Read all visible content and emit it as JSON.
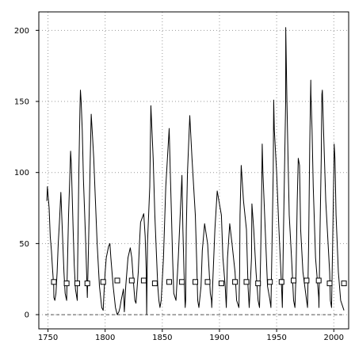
{
  "chart_data": {
    "type": "line",
    "title": "",
    "xlabel": "",
    "ylabel": "",
    "xlim": [
      1742,
      2013
    ],
    "ylim": [
      -10,
      213
    ],
    "grid": true,
    "xticks": [
      1750,
      1800,
      1850,
      1900,
      1950,
      2000
    ],
    "yticks": [
      0,
      50,
      100,
      150,
      200
    ],
    "baseline": 0,
    "colors": {
      "line": "#000000",
      "grid": "#9a9a9a",
      "marker_fill": "#ffffff",
      "marker_stroke": "#000000",
      "baseline": "#555555"
    },
    "series": [
      {
        "style": "line",
        "x": [
          1749,
          1749.5,
          1751,
          1752,
          1753,
          1754,
          1755,
          1755.2,
          1756,
          1757,
          1758,
          1759,
          1760,
          1761.3,
          1762,
          1763,
          1764,
          1765,
          1766.3,
          1767,
          1768,
          1769,
          1769.8,
          1770.4,
          1771,
          1772,
          1773,
          1774,
          1775.6,
          1776,
          1777,
          1778,
          1778.4,
          1779,
          1780,
          1781,
          1783,
          1784.4,
          1785,
          1786,
          1787,
          1787.8,
          1789,
          1790,
          1791,
          1793,
          1795,
          1797,
          1798.3,
          1799,
          1800,
          1801,
          1803,
          1804.2,
          1805,
          1807,
          1809,
          1810.6,
          1812,
          1813,
          1814,
          1816,
          1816.8,
          1818,
          1820,
          1822,
          1823.3,
          1825,
          1826,
          1827,
          1829,
          1830,
          1831,
          1833.8,
          1835,
          1836,
          1836.3,
          1837,
          1839,
          1840,
          1842,
          1843.5,
          1845,
          1846,
          1847,
          1848,
          1849,
          1851,
          1853,
          1856,
          1857,
          1858,
          1859,
          1860,
          1862,
          1864,
          1867.2,
          1868,
          1869,
          1870,
          1870.4,
          1871,
          1872,
          1874,
          1876,
          1878.9,
          1880,
          1881,
          1882,
          1883.9,
          1885,
          1887,
          1889.6,
          1891,
          1892,
          1893,
          1893.2,
          1894,
          1896,
          1898,
          1901.7,
          1903,
          1905,
          1906,
          1907,
          1909,
          1911,
          1913.6,
          1915,
          1917,
          1917.6,
          1918,
          1919,
          1921,
          1923.6,
          1925,
          1926,
          1928,
          1928.4,
          1930,
          1932,
          1933.8,
          1935,
          1936,
          1937,
          1937.4,
          1938,
          1940,
          1942,
          1944.2,
          1945,
          1946,
          1947,
          1947.4,
          1948,
          1950,
          1952,
          1954.3,
          1955,
          1956,
          1957.9,
          1958,
          1959,
          1960,
          1961,
          1963,
          1964.8,
          1966,
          1967,
          1968,
          1968.9,
          1970,
          1971,
          1973,
          1976.2,
          1977,
          1978,
          1979,
          1979.9,
          1980,
          1981,
          1982,
          1984,
          1986.8,
          1987,
          1988,
          1989,
          1989.6,
          1990,
          1991,
          1993,
          1996.4,
          1997,
          1998,
          1999,
          2000,
          2000.3,
          2001,
          2002,
          2004,
          2006,
          2008.9
        ],
        "y": [
          80,
          90,
          75,
          55,
          45,
          32,
          20,
          12,
          10,
          15,
          30,
          50,
          65,
          86,
          70,
          50,
          30,
          15,
          10,
          35,
          70,
          95,
          115,
          106,
          90,
          60,
          35,
          18,
          10,
          40,
          100,
          145,
          158,
          150,
          130,
          95,
          50,
          12,
          30,
          70,
          110,
          141,
          125,
          110,
          90,
          50,
          20,
          5,
          3,
          15,
          30,
          40,
          48,
          50,
          40,
          20,
          5,
          0,
          2,
          5,
          10,
          18,
          2,
          20,
          40,
          47,
          40,
          20,
          10,
          8,
          30,
          50,
          65,
          71,
          55,
          30,
          0,
          50,
          90,
          147,
          110,
          70,
          40,
          20,
          10,
          5,
          10,
          40,
          90,
          131,
          100,
          70,
          40,
          15,
          10,
          40,
          98,
          60,
          30,
          5,
          10,
          60,
          100,
          140,
          110,
          70,
          40,
          10,
          5,
          20,
          45,
          64,
          50,
          30,
          15,
          10,
          5,
          20,
          60,
          87,
          70,
          40,
          20,
          5,
          40,
          64,
          50,
          30,
          10,
          5,
          30,
          70,
          105,
          80,
          60,
          20,
          5,
          40,
          78,
          60,
          30,
          10,
          5,
          40,
          90,
          120,
          100,
          60,
          20,
          10,
          5,
          50,
          100,
          151,
          130,
          100,
          60,
          20,
          5,
          60,
          150,
          202,
          150,
          110,
          70,
          40,
          10,
          5,
          30,
          80,
          110,
          105,
          60,
          30,
          10,
          5,
          50,
          120,
          165,
          155,
          130,
          90,
          40,
          12,
          5,
          60,
          110,
          155,
          158,
          130,
          80,
          30,
          10,
          5,
          50,
          100,
          120,
          110,
          70,
          30,
          10,
          3
        ]
      },
      {
        "style": "markers",
        "x": [
          1755.2,
          1766.3,
          1775.6,
          1784.4,
          1798.3,
          1810.6,
          1823.3,
          1833.8,
          1843.5,
          1856,
          1867.2,
          1878.9,
          1889.6,
          1901.7,
          1913.6,
          1923.6,
          1933.8,
          1944.2,
          1954.3,
          1964.8,
          1976.2,
          1986.8,
          1996.4,
          2008.9
        ],
        "y": [
          23,
          22,
          22,
          22,
          23,
          24,
          24,
          24,
          22,
          23,
          23,
          23,
          23,
          22,
          23,
          23,
          22,
          23,
          23,
          24,
          24,
          24,
          22,
          22
        ]
      }
    ]
  }
}
